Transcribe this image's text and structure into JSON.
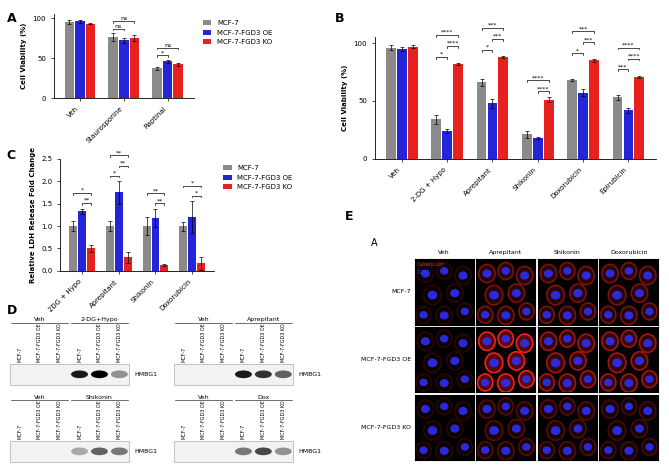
{
  "chart_data": [
    {
      "type": "bar",
      "panel": "A",
      "ylabel": "Cell Viability (%)",
      "categories": [
        "Veh",
        "Staurosporine",
        "Raptinal"
      ],
      "series": [
        {
          "name": "MCF-7",
          "color": "#8a8a8a",
          "values": [
            95,
            76,
            37
          ],
          "errors": [
            3,
            5,
            2
          ]
        },
        {
          "name": "MCF-7-FGD3 OE",
          "color": "#2424d8",
          "values": [
            96,
            72,
            46
          ],
          "errors": [
            2,
            3,
            2
          ]
        },
        {
          "name": "MCF-7-FGD3 KO",
          "color": "#e8201e",
          "values": [
            93,
            75,
            42
          ],
          "errors": [
            1,
            4,
            2
          ]
        }
      ],
      "ylim": [
        0,
        105
      ],
      "yticks": [
        0,
        50,
        100
      ],
      "legend": "upper left",
      "significance": [
        {
          "category": "Staurosporine",
          "between": [
            "MCF-7",
            "MCF-7-FGD3 OE"
          ],
          "text": "ns"
        },
        {
          "category": "Staurosporine",
          "between": [
            "MCF-7",
            "MCF-7-FGD3 KO"
          ],
          "text": "ns"
        },
        {
          "category": "Raptinal",
          "between": [
            "MCF-7",
            "MCF-7-FGD3 OE"
          ],
          "text": "*"
        },
        {
          "category": "Raptinal",
          "between": [
            "MCF-7",
            "MCF-7-FGD3 KO"
          ],
          "text": "ns"
        }
      ]
    },
    {
      "type": "bar",
      "panel": "B",
      "ylabel": "Cell Viability (%)",
      "categories": [
        "Veh",
        "2-DG + Hypo",
        "Aprepitant",
        "Shikonin",
        "Doxorubicin",
        "Epirubicin"
      ],
      "series": [
        {
          "name": "MCF-7",
          "color": "#8a8a8a",
          "values": [
            96,
            34,
            66,
            21,
            68,
            53
          ],
          "errors": [
            2,
            4,
            3,
            3,
            1,
            2
          ]
        },
        {
          "name": "MCF-7-FGD3 OE",
          "color": "#2424d8",
          "values": [
            95,
            24,
            48,
            18,
            57,
            42
          ],
          "errors": [
            2,
            2,
            4,
            1,
            3,
            2
          ]
        },
        {
          "name": "MCF-7-FGD3 KO",
          "color": "#e8201e",
          "values": [
            97,
            82,
            88,
            51,
            85,
            71
          ],
          "errors": [
            1,
            1,
            1,
            2,
            1,
            1
          ]
        }
      ],
      "ylim": [
        0,
        105
      ],
      "yticks": [
        0,
        50,
        100
      ],
      "significance": [
        {
          "category": "2-DG + Hypo",
          "between": [
            "MCF-7",
            "MCF-7-FGD3 OE"
          ],
          "text": "*"
        },
        {
          "category": "2-DG + Hypo",
          "between": [
            "MCF-7-FGD3 OE",
            "MCF-7-FGD3 KO"
          ],
          "text": "****"
        },
        {
          "category": "2-DG + Hypo",
          "between": [
            "MCF-7",
            "MCF-7-FGD3 KO"
          ],
          "text": "****"
        },
        {
          "category": "Aprepitant",
          "between": [
            "MCF-7",
            "MCF-7-FGD3 OE"
          ],
          "text": "*"
        },
        {
          "category": "Aprepitant",
          "between": [
            "MCF-7-FGD3 OE",
            "MCF-7-FGD3 KO"
          ],
          "text": "***"
        },
        {
          "category": "Aprepitant",
          "between": [
            "MCF-7",
            "MCF-7-FGD3 KO"
          ],
          "text": "***"
        },
        {
          "category": "Shikonin",
          "between": [
            "MCF-7-FGD3 OE",
            "MCF-7-FGD3 KO"
          ],
          "text": "****"
        },
        {
          "category": "Shikonin",
          "between": [
            "MCF-7",
            "MCF-7-FGD3 KO"
          ],
          "text": "****"
        },
        {
          "category": "Doxorubicin",
          "between": [
            "MCF-7",
            "MCF-7-FGD3 OE"
          ],
          "text": "*"
        },
        {
          "category": "Doxorubicin",
          "between": [
            "MCF-7-FGD3 OE",
            "MCF-7-FGD3 KO"
          ],
          "text": "***"
        },
        {
          "category": "Doxorubicin",
          "between": [
            "MCF-7",
            "MCF-7-FGD3 KO"
          ],
          "text": "***"
        },
        {
          "category": "Epirubicin",
          "between": [
            "MCF-7",
            "MCF-7-FGD3 OE"
          ],
          "text": "***"
        },
        {
          "category": "Epirubicin",
          "between": [
            "MCF-7-FGD3 OE",
            "MCF-7-FGD3 KO"
          ],
          "text": "****"
        },
        {
          "category": "Epirubicin",
          "between": [
            "MCF-7",
            "MCF-7-FGD3 KO"
          ],
          "text": "****"
        }
      ]
    },
    {
      "type": "bar",
      "panel": "C",
      "ylabel": "Relative LDH Release Fold Change",
      "categories": [
        "2DG + Hypo",
        "Aprepitant",
        "Shikonin",
        "Doxorubicin"
      ],
      "series": [
        {
          "name": "MCF-7",
          "color": "#8a8a8a",
          "values": [
            1.0,
            1.0,
            1.0,
            1.0
          ],
          "errors": [
            0.12,
            0.12,
            0.2,
            0.1
          ]
        },
        {
          "name": "MCF-7-FGD3 OE",
          "color": "#2424d8",
          "values": [
            1.33,
            1.75,
            1.18,
            1.2
          ],
          "errors": [
            0.06,
            0.25,
            0.2,
            0.35
          ]
        },
        {
          "name": "MCF-7-FGD3 KO",
          "color": "#e8201e",
          "values": [
            0.5,
            0.3,
            0.13,
            0.17
          ],
          "errors": [
            0.08,
            0.12,
            0.03,
            0.15
          ]
        }
      ],
      "ylim": [
        0,
        2.5
      ],
      "yticks": [
        {
          "value": 0,
          "label": "0.0"
        },
        0.5,
        {
          "value": 1,
          "label": "1.0"
        },
        1.5,
        {
          "value": 2,
          "label": "2.0"
        },
        2.5
      ],
      "legend": "upper left",
      "significance": [
        {
          "category": "2DG + Hypo",
          "between": [
            "MCF-7-FGD3 OE",
            "MCF-7-FGD3 KO"
          ],
          "text": "**"
        },
        {
          "category": "2DG + Hypo",
          "between": [
            "MCF-7",
            "MCF-7-FGD3 KO"
          ],
          "text": "*"
        },
        {
          "category": "Aprepitant",
          "between": [
            "MCF-7",
            "MCF-7-FGD3 OE"
          ],
          "text": "*"
        },
        {
          "category": "Aprepitant",
          "between": [
            "MCF-7-FGD3 OE",
            "MCF-7-FGD3 KO"
          ],
          "text": "**"
        },
        {
          "category": "Aprepitant",
          "between": [
            "MCF-7",
            "MCF-7-FGD3 KO"
          ],
          "text": "**"
        },
        {
          "category": "Shikonin",
          "between": [
            "MCF-7-FGD3 OE",
            "MCF-7-FGD3 KO"
          ],
          "text": "**"
        },
        {
          "category": "Shikonin",
          "between": [
            "MCF-7",
            "MCF-7-FGD3 KO"
          ],
          "text": "**"
        },
        {
          "category": "Doxorubicin",
          "between": [
            "MCF-7-FGD3 OE",
            "MCF-7-FGD3 KO"
          ],
          "text": "*"
        },
        {
          "category": "Doxorubicin",
          "between": [
            "MCF-7",
            "MCF-7-FGD3 KO"
          ],
          "text": "*"
        }
      ]
    }
  ],
  "blots": {
    "panel": "D",
    "protein": "HMBG1",
    "lanes": [
      "MCF-7",
      "MCF-7-FGD3 OE",
      "MCF-7-FGD3 KO"
    ],
    "groups": [
      {
        "control": "Veh",
        "treatment": "2-DG+Hypo",
        "control_bands": [
          0,
          0,
          0
        ],
        "treatment_bands": [
          0.9,
          1.0,
          0.4
        ]
      },
      {
        "control": "Veh",
        "treatment": "Aprepitant",
        "control_bands": [
          0,
          0,
          0
        ],
        "treatment_bands": [
          0.9,
          0.8,
          0.6
        ]
      },
      {
        "control": "Veh",
        "treatment": "Shikonin",
        "control_bands": [
          0,
          0,
          0
        ],
        "treatment_bands": [
          0.3,
          0.6,
          0.5
        ]
      },
      {
        "control": "Veh",
        "treatment": "Dox",
        "control_bands": [
          0,
          0,
          0
        ],
        "treatment_bands": [
          0.5,
          0.7,
          0.4
        ]
      }
    ]
  },
  "microscopy": {
    "panel": "E",
    "subpanel": "A",
    "columns": [
      "Veh",
      "Aprepitant",
      "Shikonin",
      "Doxorubicin"
    ],
    "rows": [
      "MCF-7",
      "MCF-7-FGD3 OE",
      "MCF-7-FGD3 KO"
    ],
    "stains": [
      {
        "name": "Calreticulin",
        "color": "#ff2020"
      },
      {
        "name": "DAPI",
        "color": "#3030ff"
      }
    ],
    "calreticulin_intensity": [
      [
        0.15,
        0.45,
        0.45,
        0.45
      ],
      [
        0.15,
        0.95,
        0.6,
        0.6
      ],
      [
        0.15,
        0.3,
        0.3,
        0.25
      ]
    ]
  }
}
